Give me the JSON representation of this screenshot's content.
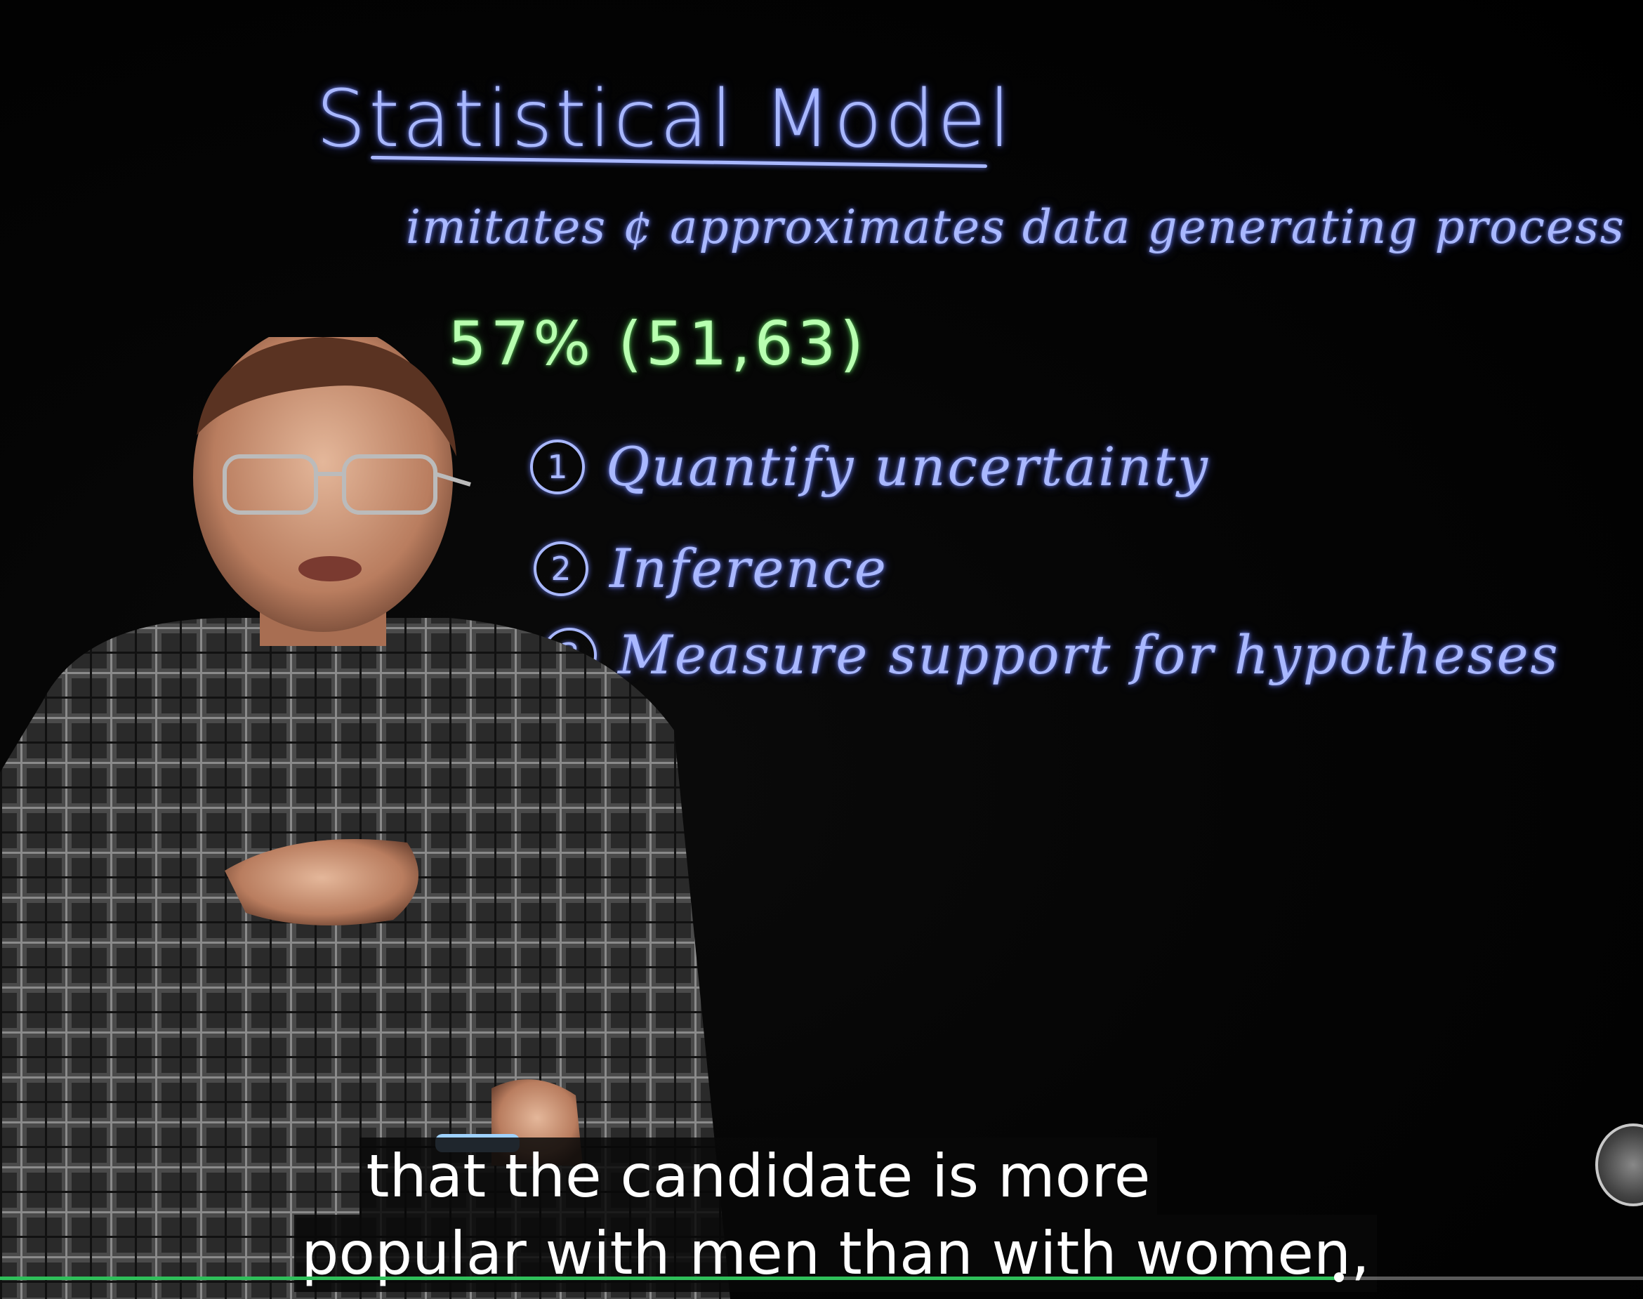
{
  "board": {
    "title": "Statistical Model",
    "subtitle": "imitates ¢ approximates data generating process",
    "stat": "57% (51,63)",
    "items": [
      {
        "number": "1",
        "label": "Quantify uncertainty"
      },
      {
        "number": "2",
        "label": "Inference"
      },
      {
        "number": "3",
        "label": "Measure support for hypotheses"
      }
    ]
  },
  "captions": {
    "line1": "that the candidate is more",
    "line2": "popular with men than with women,"
  },
  "player": {
    "progress_fraction": 0.815
  },
  "colors": {
    "marker_blue": "#a9b8ff",
    "marker_green": "#b8ffb0",
    "progress": "#2fbf5a"
  }
}
